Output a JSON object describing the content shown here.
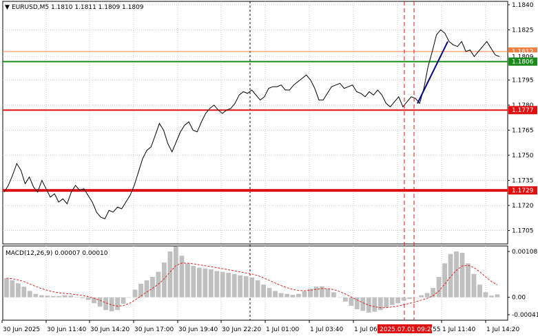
{
  "header": {
    "symbol": "EURUSD,M5",
    "ohlc": "1.1810 1.1811 1.1809 1.1809",
    "triangle_icon": "triangle-down-icon"
  },
  "chart_data": {
    "type": "line",
    "price_axis": {
      "ticks": [
        "1.1840",
        "1.1825",
        "1.1809",
        "1.1795",
        "1.1780",
        "1.1765",
        "1.1750",
        "1.1735",
        "1.1720",
        "1.1705"
      ],
      "ylim": [
        1.1697,
        1.1842
      ]
    },
    "time_axis": {
      "labels": [
        "30 Jun 2025",
        "30 Jun 11:40",
        "30 Jun 14:20",
        "30 Jun 17:00",
        "30 Jun 19:40",
        "30 Jun 22:20",
        "1 Jul 01:00",
        "1 Jul 03:40",
        "1 Jul 06",
        "1 Jul 11:40",
        "1 Jul 14:20"
      ],
      "cursor_label": "2025.07.01 09:20",
      "cursor_label_suffix": "55"
    },
    "series": [
      {
        "values": [
          1.1728,
          1.1732,
          1.1738,
          1.1745,
          1.1741,
          1.1733,
          1.1737,
          1.1731,
          1.1728,
          1.1735,
          1.173,
          1.1725,
          1.1727,
          1.1722,
          1.1724,
          1.1721,
          1.1728,
          1.1732,
          1.1729,
          1.173,
          1.1726,
          1.1722,
          1.1716,
          1.1713,
          1.1712,
          1.1717,
          1.1716,
          1.1719,
          1.1718,
          1.1722,
          1.1726,
          1.1732,
          1.174,
          1.1748,
          1.1753,
          1.1755,
          1.1762,
          1.1769,
          1.1765,
          1.1757,
          1.1752,
          1.1758,
          1.1764,
          1.1768,
          1.177,
          1.1765,
          1.1764,
          1.177,
          1.1775,
          1.1778,
          1.178,
          1.1777,
          1.1775,
          1.1777,
          1.1778,
          1.1781,
          1.1786,
          1.1788,
          1.1787,
          1.1789,
          1.1786,
          1.1783,
          1.1785,
          1.179,
          1.1791,
          1.1791,
          1.1792,
          1.1789,
          1.1789,
          1.1792,
          1.1794,
          1.1796,
          1.1798,
          1.1795,
          1.179,
          1.1783,
          1.1783,
          1.1787,
          1.1791,
          1.1792,
          1.1793,
          1.179,
          1.1791,
          1.1792,
          1.1788,
          1.1787,
          1.1785,
          1.1788,
          1.1786,
          1.1789,
          1.1786,
          1.1781,
          1.1779,
          1.1782,
          1.1785,
          1.1779,
          1.1782,
          1.1785,
          1.1784,
          1.1781,
          1.179,
          1.1803,
          1.1812,
          1.1822,
          1.1825,
          1.1823,
          1.1818,
          1.1816,
          1.1815,
          1.1818,
          1.1812,
          1.1813,
          1.1809,
          1.1812,
          1.1815,
          1.1818,
          1.1814,
          1.181,
          1.1809
        ]
      },
      {
        "name": "MACD(12,26,9) 0.00007 0.00010",
        "type": "histogram",
        "values": [
          0.00045,
          0.0004,
          0.00033,
          0.00025,
          0.00015,
          8e-05,
          5e-05,
          4e-05,
          3e-05,
          3e-05,
          5e-05,
          4e-05,
          1e-05,
          -2e-05,
          -6e-05,
          -0.00014,
          -0.00022,
          -0.0003,
          -0.00033,
          -0.0003,
          -0.00015,
          0.0,
          0.00018,
          0.00032,
          0.0004,
          0.00048,
          0.0006,
          0.00082,
          0.00108,
          0.0012,
          0.00098,
          0.0008,
          0.00074,
          0.0007,
          0.00068,
          0.00066,
          0.00062,
          0.0006,
          0.00058,
          0.00055,
          0.00052,
          0.0005,
          0.00047,
          0.0004,
          0.0003,
          0.00022,
          0.00015,
          0.0001,
          8e-05,
          6e-05,
          8e-05,
          0.00014,
          0.0002,
          0.00025,
          0.00026,
          0.0002,
          0.00012,
          0.0,
          -0.0001,
          -0.0002,
          -0.00028,
          -0.00032,
          -0.00036,
          -0.00034,
          -0.0003,
          -0.00024,
          -0.00018,
          -0.00014,
          -8e-05,
          -4e-05,
          0.0,
          5e-05,
          0.0001,
          0.00022,
          0.00048,
          0.0008,
          0.00102,
          0.00108,
          0.00105,
          0.0008,
          0.00055,
          0.0003,
          0.00012,
          4e-05,
          7e-05
        ]
      }
    ],
    "macd_axis": {
      "ticks": [
        "0.00108",
        "0.00",
        "-0.00041"
      ],
      "ylim": [
        -0.00041,
        0.00108
      ]
    }
  },
  "badges": [
    {
      "label": "1.1812",
      "color": "#f08040",
      "price": 1.1812
    },
    {
      "label": "1.1809",
      "color": "#ffffff",
      "price": 1.1809
    },
    {
      "label": "1.1806",
      "color": "#1a8a1a",
      "price": 1.1806
    },
    {
      "label": "1.1777",
      "color": "#e01010",
      "price": 1.1777
    },
    {
      "label": "1.1729",
      "color": "#e01010",
      "price": 1.1729
    }
  ],
  "levels": {
    "orange_line": 1.1812,
    "green_line": 1.1806,
    "red_line_1": 1.1777,
    "red_line_2": 1.1729
  },
  "colors": {
    "price_line": "#000000",
    "grid": "#c8c8c8",
    "hist": "#c0c0c0",
    "signal": "#e02020",
    "trendline": "#000080",
    "cursor": "#e01010"
  }
}
